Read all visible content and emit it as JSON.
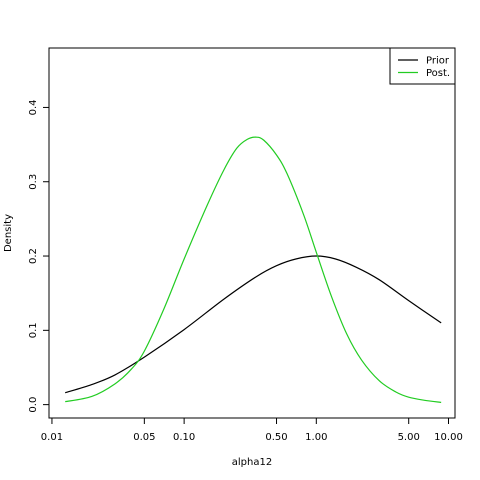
{
  "chart_data": {
    "type": "line",
    "xlabel": "alpha12",
    "ylabel": "Density",
    "x_scale": "log",
    "xlim": [
      0.0095,
      11.2
    ],
    "ylim": [
      -0.018,
      0.48
    ],
    "x_ticks": [
      0.01,
      0.05,
      0.1,
      0.5,
      1.0,
      5.0,
      10.0
    ],
    "x_tick_labels": [
      "0.01",
      "0.05",
      "0.10",
      "0.50",
      "1.00",
      "5.00",
      "10.00"
    ],
    "y_ticks": [
      0.0,
      0.1,
      0.2,
      0.3,
      0.4
    ],
    "y_tick_labels": [
      "0.0",
      "0.1",
      "0.2",
      "0.3",
      "0.4"
    ],
    "grid": false,
    "legend_position": "top-right",
    "series": [
      {
        "name": "Prior",
        "color": "#000000",
        "x": [
          0.0126,
          0.02,
          0.03,
          0.05,
          0.1,
          0.2,
          0.35,
          0.5,
          0.7,
          1.0,
          1.4,
          2.0,
          3.0,
          5.0,
          8.8
        ],
        "y": [
          0.016,
          0.027,
          0.04,
          0.064,
          0.101,
          0.142,
          0.172,
          0.187,
          0.196,
          0.2,
          0.196,
          0.185,
          0.168,
          0.14,
          0.11
        ]
      },
      {
        "name": "Post.",
        "color": "#22cc22",
        "x": [
          0.0126,
          0.02,
          0.03,
          0.04,
          0.05,
          0.07,
          0.1,
          0.15,
          0.2,
          0.25,
          0.3,
          0.35,
          0.4,
          0.5,
          0.6,
          0.8,
          1.0,
          1.3,
          1.7,
          2.2,
          3.0,
          4.0,
          5.0,
          6.5,
          8.8
        ],
        "y": [
          0.004,
          0.011,
          0.028,
          0.048,
          0.072,
          0.128,
          0.196,
          0.269,
          0.316,
          0.345,
          0.357,
          0.36,
          0.356,
          0.336,
          0.311,
          0.256,
          0.205,
          0.146,
          0.095,
          0.06,
          0.032,
          0.017,
          0.01,
          0.006,
          0.003
        ]
      }
    ]
  }
}
